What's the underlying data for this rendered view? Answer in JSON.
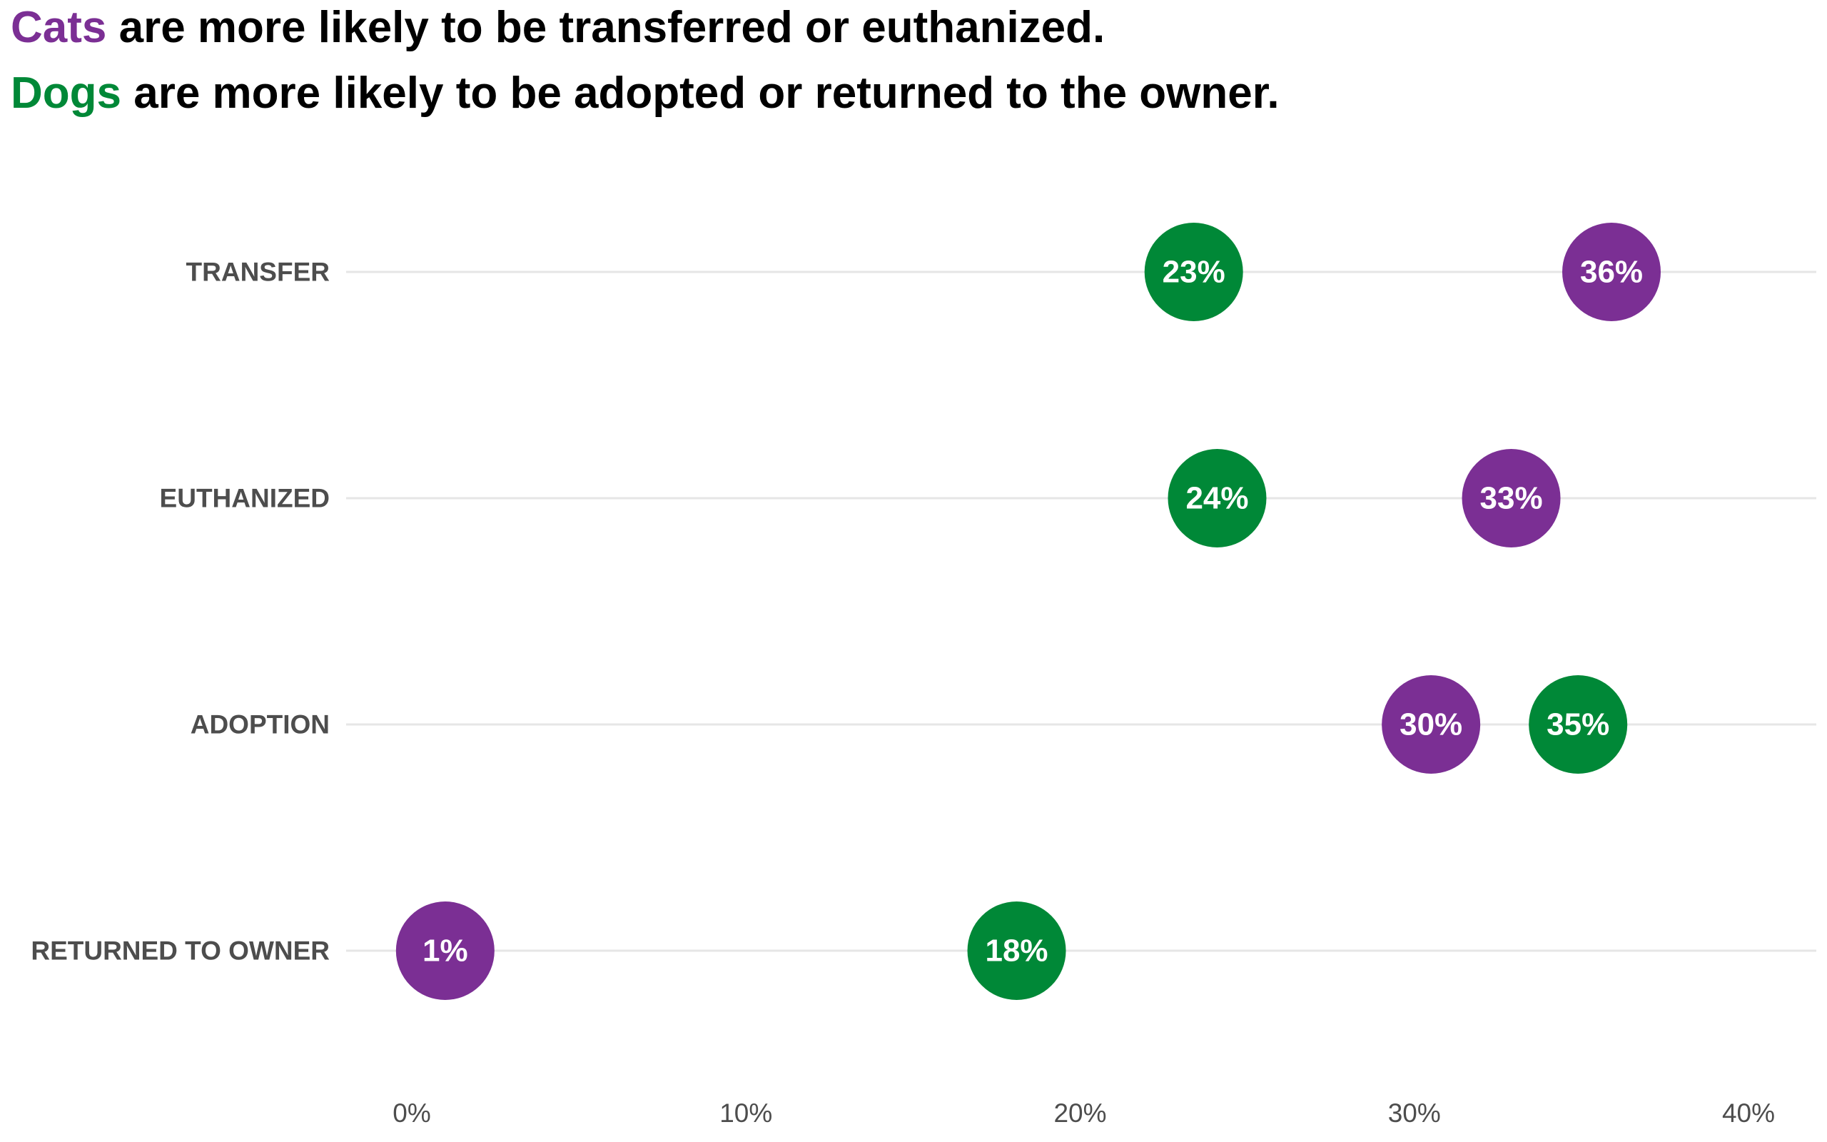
{
  "title": {
    "line1": {
      "highlight": "Cats",
      "rest": " are more likely to be transferred or euthanized."
    },
    "line2": {
      "highlight": "Dogs",
      "rest": " are more likely to be adopted or returned to the owner."
    }
  },
  "colors": {
    "cats": "#7b2f94",
    "dogs": "#008837",
    "gridline": "#e6e6e6",
    "axis_text": "#4d4d4d",
    "title_text": "#000000",
    "point_label": "#ffffff"
  },
  "chart_data": {
    "type": "scatter",
    "categories": [
      "TRANSFER",
      "EUTHANIZED",
      "ADOPTION",
      "RETURNED TO OWNER"
    ],
    "x_ticks": [
      0,
      10,
      20,
      30,
      40
    ],
    "x_tick_labels": [
      "0%",
      "10%",
      "20%",
      "30%",
      "40%"
    ],
    "xlim": [
      0,
      40
    ],
    "grid": "horizontal",
    "legend": "none",
    "series": [
      {
        "key": "cats",
        "values": [
          35.9,
          32.9,
          30.5,
          1.0
        ],
        "labels": [
          "36%",
          "33%",
          "30%",
          "1%"
        ]
      },
      {
        "key": "dogs",
        "values": [
          23.4,
          24.1,
          34.9,
          18.1
        ],
        "labels": [
          "23%",
          "24%",
          "35%",
          "18%"
        ]
      }
    ]
  }
}
